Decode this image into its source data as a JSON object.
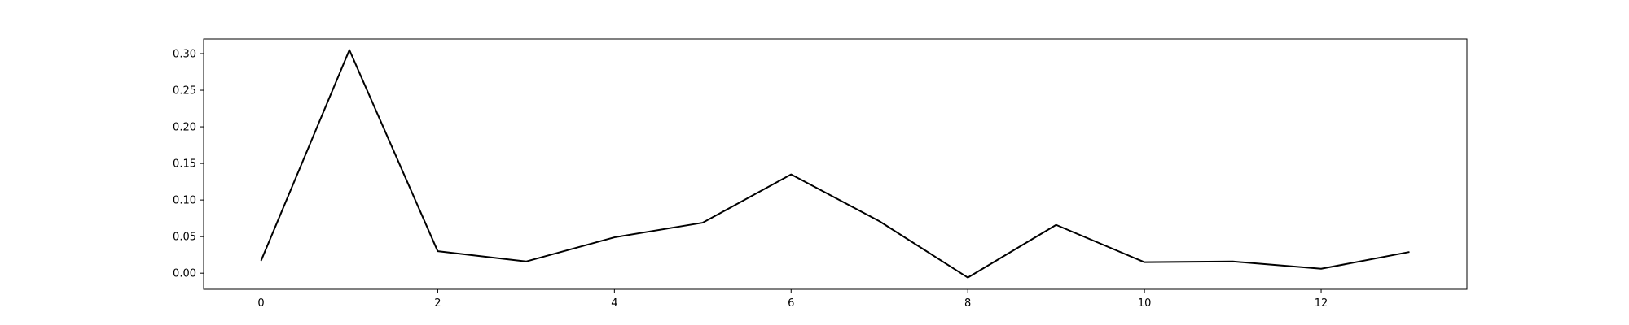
{
  "chart_data": {
    "type": "line",
    "title": "",
    "xlabel": "",
    "ylabel": "",
    "xlim": [
      -0.65,
      13.65
    ],
    "ylim": [
      -0.022,
      0.32
    ],
    "x_ticks": [
      0,
      2,
      4,
      6,
      8,
      10,
      12
    ],
    "x_tick_labels": [
      "0",
      "2",
      "4",
      "6",
      "8",
      "10",
      "12"
    ],
    "y_ticks": [
      0.0,
      0.05,
      0.1,
      0.15,
      0.2,
      0.25,
      0.3
    ],
    "y_tick_labels": [
      "0.00",
      "0.05",
      "0.10",
      "0.15",
      "0.20",
      "0.25",
      "0.30"
    ],
    "grid": false,
    "legend": "none",
    "series": [
      {
        "color": "#000000",
        "x": [
          0,
          1,
          2,
          3,
          4,
          5,
          6,
          7,
          8,
          9,
          10,
          11,
          12,
          13
        ],
        "values": [
          0.017,
          0.305,
          0.03,
          0.016,
          0.049,
          0.069,
          0.135,
          0.071,
          -0.006,
          0.066,
          0.015,
          0.016,
          0.006,
          0.029
        ]
      }
    ]
  }
}
